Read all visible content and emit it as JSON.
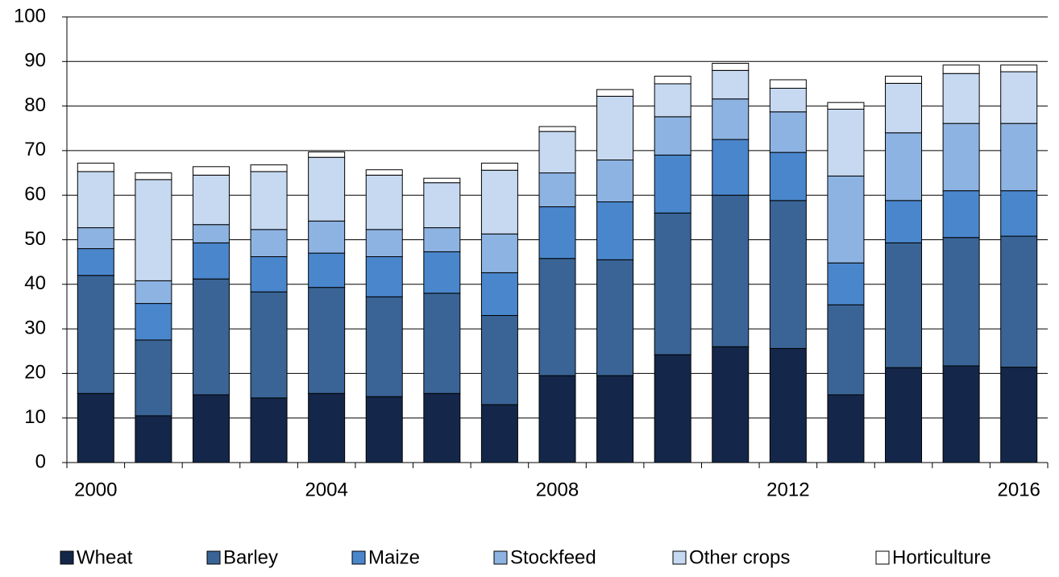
{
  "chart_data": {
    "type": "stacked_bar",
    "categories": [
      "2000",
      null,
      null,
      null,
      "2004",
      null,
      null,
      null,
      "2008",
      null,
      null,
      null,
      "2012",
      null,
      null,
      null,
      "2016"
    ],
    "series": [
      {
        "name": "Wheat",
        "color": "#14274a",
        "values": [
          15.5,
          10.5,
          15.2,
          14.5,
          15.5,
          14.8,
          15.5,
          13,
          19.5,
          19.5,
          24.2,
          26,
          25.6,
          15.2,
          21.3,
          21.7,
          21.4
        ]
      },
      {
        "name": "Barley",
        "color": "#3a6496",
        "values": [
          26.5,
          17,
          26,
          23.8,
          23.8,
          22.4,
          22.5,
          20,
          26.3,
          26,
          31.8,
          34,
          33.2,
          20.2,
          28,
          28.8,
          29.4
        ]
      },
      {
        "name": "Maize",
        "color": "#4a86cc",
        "values": [
          6,
          8.2,
          8.1,
          7.9,
          7.7,
          9,
          9.3,
          9.6,
          11.6,
          13,
          13,
          12.5,
          10.8,
          9.4,
          9.5,
          10.5,
          10.2
        ]
      },
      {
        "name": "Stockfeed",
        "color": "#8db3e2",
        "values": [
          4.7,
          5.1,
          4.1,
          6.1,
          7.2,
          6.1,
          5.4,
          8.7,
          7.6,
          9.4,
          8.6,
          9.1,
          9.1,
          19.5,
          15.2,
          15.1,
          15.1
        ]
      },
      {
        "name": "Other crops",
        "color": "#c6d9f1",
        "values": [
          12.6,
          22.7,
          11.1,
          13,
          14.3,
          12.2,
          10.1,
          14.3,
          9.3,
          14.3,
          7.4,
          6.4,
          5.3,
          15,
          11.1,
          11.2,
          11.6
        ]
      },
      {
        "name": "Horticulture",
        "color": "#ffffff",
        "values": [
          1.9,
          1.5,
          1.9,
          1.5,
          1.2,
          1.2,
          1,
          1.6,
          1.1,
          1.5,
          1.7,
          1.6,
          1.9,
          1.5,
          1.6,
          1.9,
          1.5
        ]
      }
    ],
    "ylim": [
      0,
      100
    ],
    "yticks": [
      0,
      10,
      20,
      30,
      40,
      50,
      60,
      70,
      80,
      90,
      100
    ],
    "grid": true,
    "legend": "bottom"
  }
}
